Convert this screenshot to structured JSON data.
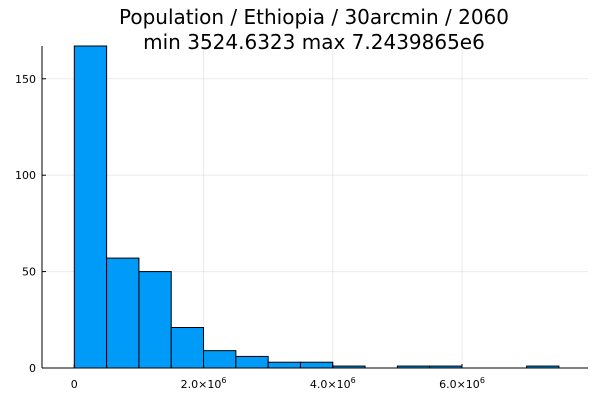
{
  "chart_data": {
    "type": "bar",
    "title": "Population / Ethiopia / 30arcmin / 2060",
    "subtitle": "min 3524.6323  max 7.2439865e6",
    "xlabel": "",
    "ylabel": "",
    "bin_width": 500000,
    "bins": [
      {
        "x0": 0,
        "x1": 500000,
        "count": 167
      },
      {
        "x0": 500000,
        "x1": 1000000,
        "count": 57
      },
      {
        "x0": 1000000,
        "x1": 1500000,
        "count": 50
      },
      {
        "x0": 1500000,
        "x1": 2000000,
        "count": 21
      },
      {
        "x0": 2000000,
        "x1": 2500000,
        "count": 9
      },
      {
        "x0": 2500000,
        "x1": 3000000,
        "count": 6
      },
      {
        "x0": 3000000,
        "x1": 3500000,
        "count": 3
      },
      {
        "x0": 3500000,
        "x1": 4000000,
        "count": 3
      },
      {
        "x0": 4000000,
        "x1": 4500000,
        "count": 1
      },
      {
        "x0": 5000000,
        "x1": 5500000,
        "count": 1
      },
      {
        "x0": 5500000,
        "x1": 6000000,
        "count": 1
      },
      {
        "x0": 7000000,
        "x1": 7500000,
        "count": 1
      }
    ],
    "xlim": [
      -500000,
      7950000
    ],
    "ylim": [
      0,
      167
    ],
    "x_ticks": [
      {
        "value": 0,
        "label": "0",
        "exp": ""
      },
      {
        "value": 2000000,
        "label": "2.0×10",
        "exp": "6"
      },
      {
        "value": 4000000,
        "label": "4.0×10",
        "exp": "6"
      },
      {
        "value": 6000000,
        "label": "6.0×10",
        "exp": "6"
      }
    ],
    "y_ticks": [
      {
        "value": 0,
        "label": "0"
      },
      {
        "value": 50,
        "label": "50"
      },
      {
        "value": 100,
        "label": "100"
      },
      {
        "value": 150,
        "label": "150"
      }
    ],
    "grid": true,
    "legend": false,
    "colors": {
      "bar_fill": "#009AF9",
      "bar_stroke": "#000000"
    }
  }
}
